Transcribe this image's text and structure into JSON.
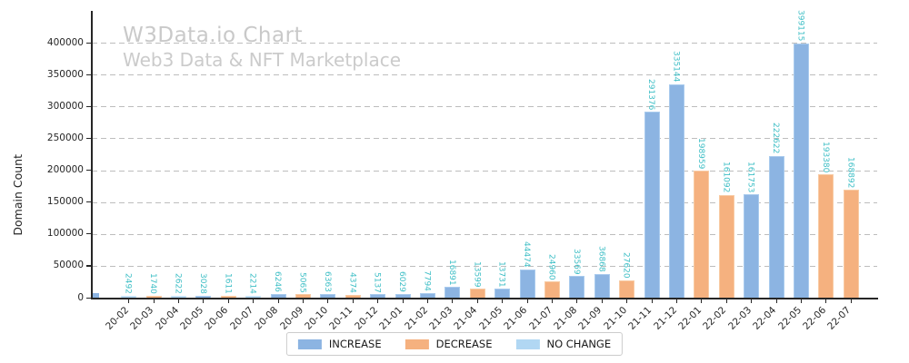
{
  "header": {
    "title": "W3Data.io Chart",
    "subtitle": "Web3 Data & NFT Marketplace"
  },
  "chart_data": {
    "type": "bar",
    "title": "W3Data.io Chart",
    "subtitle": "Web3 Data & NFT Marketplace",
    "xlabel": "",
    "ylabel": "Domain Count",
    "ylim": [
      0,
      450000
    ],
    "yticks": [
      0,
      50000,
      100000,
      150000,
      200000,
      250000,
      300000,
      350000,
      400000
    ],
    "grid": "horizontal-dashed",
    "legend_position": "bottom-center",
    "categories": [
      "20-02",
      "20-03",
      "20-04",
      "20-05",
      "20-06",
      "20-07",
      "20-08",
      "20-09",
      "20-10",
      "20-11",
      "20-12",
      "21-01",
      "21-02",
      "21-03",
      "21-04",
      "21-05",
      "21-06",
      "21-07",
      "21-08",
      "21-09",
      "21-10",
      "21-11",
      "21-12",
      "22-01",
      "22-02",
      "22-03",
      "22-04",
      "22-05",
      "22-06",
      "22-07"
    ],
    "values": [
      2492,
      1740,
      2622,
      3028,
      1611,
      2214,
      6246,
      5065,
      6363,
      4374,
      5137,
      6029,
      7794,
      16891,
      13599,
      13731,
      44474,
      24960,
      33569,
      36868,
      27620,
      291376,
      335144,
      198959,
      161092,
      161753,
      222622,
      399115,
      193380,
      168892
    ],
    "series_membership": [
      "NO CHANGE",
      "DECREASE",
      "NO CHANGE",
      "INCREASE",
      "DECREASE",
      "NO CHANGE",
      "INCREASE",
      "DECREASE",
      "INCREASE",
      "DECREASE",
      "INCREASE",
      "INCREASE",
      "INCREASE",
      "INCREASE",
      "DECREASE",
      "INCREASE",
      "INCREASE",
      "DECREASE",
      "INCREASE",
      "INCREASE",
      "DECREASE",
      "INCREASE",
      "INCREASE",
      "DECREASE",
      "DECREASE",
      "INCREASE",
      "INCREASE",
      "INCREASE",
      "DECREASE",
      "DECREASE"
    ],
    "clipped_partial_bar": {
      "visible": true,
      "series": "INCREASE"
    },
    "colors": {
      "INCREASE": {
        "fill": "#8CB4E2",
        "edge": "#A9CBEE"
      },
      "DECREASE": {
        "fill": "#F5B17F",
        "edge": "#F8CBA4"
      },
      "NO CHANGE": {
        "fill": "#B1D7F3",
        "edge": "#CBE5F8"
      },
      "value_label": "#3FBFC6",
      "title": "#c9c9c9",
      "grid": "#bdbdbd",
      "axis": "#262626"
    }
  },
  "legend": {
    "items": [
      {
        "label": "INCREASE"
      },
      {
        "label": "DECREASE"
      },
      {
        "label": "NO CHANGE"
      }
    ]
  }
}
